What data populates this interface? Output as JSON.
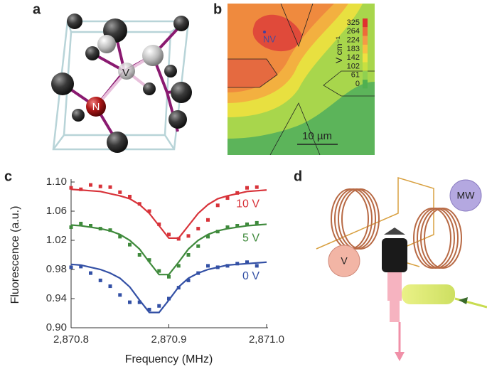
{
  "figure": {
    "panels": [
      {
        "letter": "a",
        "labels": [
          "V",
          "N"
        ]
      },
      {
        "letter": "b",
        "point_label": "NV",
        "scale_bar": "10 µm",
        "colorbar_unit": "V cm⁻¹",
        "colorbar_ticks": [
          325,
          264,
          224,
          183,
          142,
          102,
          61,
          0
        ]
      },
      {
        "letter": "c"
      },
      {
        "letter": "d",
        "labels": [
          "MW",
          "V"
        ]
      }
    ]
  },
  "chart_data": {
    "type": "line",
    "xlabel": "Frequency (MHz)",
    "ylabel": "Fluorescence (a.u.)",
    "xlim": [
      2870.8,
      2871.0
    ],
    "xticks": [
      {
        "value": 2870.8,
        "label": "2,870.8"
      },
      {
        "value": 2870.9,
        "label": "2,870.9"
      },
      {
        "value": 2871.0,
        "label": "2,871.0"
      }
    ],
    "ylim": [
      0.9,
      1.1
    ],
    "yticks": [
      {
        "value": 0.9,
        "label": "0.90"
      },
      {
        "value": 0.94,
        "label": "0.94"
      },
      {
        "value": 0.98,
        "label": "0.98"
      },
      {
        "value": 1.02,
        "label": "1.02"
      },
      {
        "value": 1.06,
        "label": "1.06"
      },
      {
        "value": 1.1,
        "label": "1.10"
      }
    ],
    "series": [
      {
        "name": "10 V",
        "color": "#d8333a",
        "x": [
          2870.8,
          2870.81,
          2870.82,
          2870.83,
          2870.84,
          2870.85,
          2870.86,
          2870.87,
          2870.88,
          2870.89,
          2870.9,
          2870.91,
          2870.92,
          2870.93,
          2870.94,
          2870.95,
          2870.96,
          2870.97,
          2870.98,
          2870.99
        ],
        "values": [
          1.092,
          1.09,
          1.096,
          1.094,
          1.093,
          1.086,
          1.08,
          1.07,
          1.06,
          1.042,
          1.028,
          1.022,
          1.026,
          1.036,
          1.048,
          1.068,
          1.078,
          1.085,
          1.092,
          1.093
        ],
        "fit_x": [
          2870.8,
          2870.81,
          2870.82,
          2870.83,
          2870.84,
          2870.85,
          2870.86,
          2870.87,
          2870.88,
          2870.89,
          2870.9,
          2870.91,
          2870.92,
          2870.93,
          2870.94,
          2870.95,
          2870.96,
          2870.97,
          2870.98,
          2870.99,
          2871.0
        ],
        "fit_values": [
          1.09,
          1.089,
          1.088,
          1.087,
          1.084,
          1.081,
          1.077,
          1.069,
          1.057,
          1.04,
          1.023,
          1.023,
          1.04,
          1.057,
          1.069,
          1.077,
          1.081,
          1.084,
          1.087,
          1.088,
          1.089
        ]
      },
      {
        "name": "5 V",
        "color": "#3f8a3c",
        "x": [
          2870.8,
          2870.81,
          2870.82,
          2870.83,
          2870.84,
          2870.85,
          2870.86,
          2870.87,
          2870.88,
          2870.89,
          2870.9,
          2870.91,
          2870.92,
          2870.93,
          2870.94,
          2870.95,
          2870.96,
          2870.97,
          2870.98,
          2870.99
        ],
        "values": [
          1.038,
          1.043,
          1.04,
          1.036,
          1.034,
          1.025,
          1.014,
          1.0,
          0.993,
          0.978,
          0.97,
          0.985,
          1.0,
          1.012,
          1.025,
          1.032,
          1.038,
          1.04,
          1.042,
          1.044
        ],
        "fit_x": [
          2870.8,
          2870.81,
          2870.82,
          2870.83,
          2870.84,
          2870.85,
          2870.86,
          2870.87,
          2870.88,
          2870.89,
          2870.9,
          2870.91,
          2870.92,
          2870.93,
          2870.94,
          2870.95,
          2870.96,
          2870.97,
          2870.98,
          2870.99,
          2871.0
        ],
        "fit_values": [
          1.041,
          1.04,
          1.038,
          1.036,
          1.033,
          1.028,
          1.02,
          1.008,
          0.99,
          0.973,
          0.973,
          0.99,
          1.008,
          1.02,
          1.028,
          1.033,
          1.036,
          1.038,
          1.04,
          1.041,
          1.042
        ]
      },
      {
        "name": "0 V",
        "color": "#3350a5",
        "x": [
          2870.8,
          2870.81,
          2870.82,
          2870.83,
          2870.84,
          2870.85,
          2870.86,
          2870.87,
          2870.88,
          2870.89,
          2870.9,
          2870.91,
          2870.92,
          2870.93,
          2870.94,
          2870.95,
          2870.96,
          2870.97,
          2870.98,
          2870.99
        ],
        "values": [
          0.983,
          0.984,
          0.975,
          0.965,
          0.957,
          0.945,
          0.935,
          0.935,
          0.925,
          0.93,
          0.94,
          0.955,
          0.965,
          0.975,
          0.985,
          0.983,
          0.985,
          0.988,
          0.99,
          0.985
        ],
        "fit_x": [
          2870.8,
          2870.81,
          2870.82,
          2870.83,
          2870.84,
          2870.85,
          2870.86,
          2870.87,
          2870.88,
          2870.89,
          2870.9,
          2870.91,
          2870.92,
          2870.93,
          2870.94,
          2870.95,
          2870.96,
          2870.97,
          2870.98,
          2870.99,
          2871.0
        ],
        "fit_values": [
          0.987,
          0.986,
          0.983,
          0.98,
          0.975,
          0.968,
          0.956,
          0.938,
          0.921,
          0.921,
          0.938,
          0.956,
          0.968,
          0.975,
          0.98,
          0.983,
          0.986,
          0.987,
          0.988,
          0.989,
          0.99
        ]
      }
    ]
  }
}
